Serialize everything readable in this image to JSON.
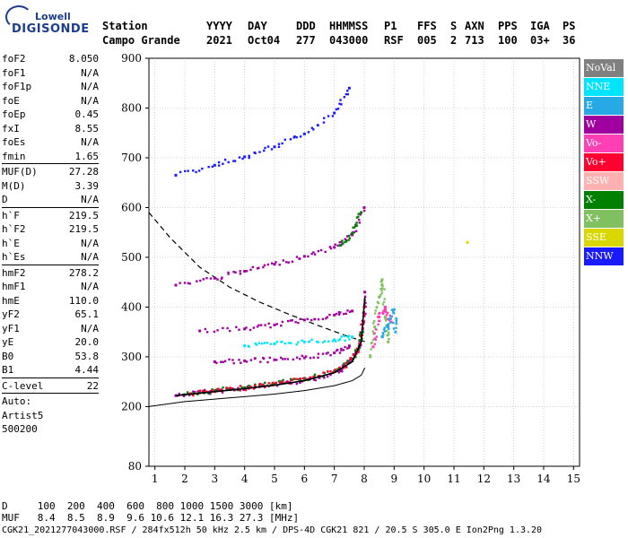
{
  "logo": {
    "top": "Lowell",
    "bottom": "DIGISONDE"
  },
  "header": {
    "labels": [
      "Station",
      "YYYY",
      "DAY",
      "DDD",
      "HHMMSS",
      "P1",
      "FFS",
      "S",
      "AXN",
      "PPS",
      "IGA",
      "PS"
    ],
    "values": [
      "Campo Grande",
      "2021",
      "Oct04",
      "277",
      "043000",
      "RSF",
      "005",
      "2",
      "713",
      "100",
      "03+",
      "36"
    ]
  },
  "params": [
    {
      "name": "foF2",
      "value": "8.050"
    },
    {
      "name": "foF1",
      "value": "N/A"
    },
    {
      "name": "foF1p",
      "value": "N/A"
    },
    {
      "name": "foE",
      "value": "N/A"
    },
    {
      "name": "foEp",
      "value": "0.45"
    },
    {
      "name": "fxI",
      "value": "8.55"
    },
    {
      "name": "foEs",
      "value": "N/A"
    },
    {
      "name": "fmin",
      "value": "1.65"
    },
    {
      "sep": true
    },
    {
      "name": "MUF(D)",
      "value": "27.28"
    },
    {
      "name": "M(D)",
      "value": "3.39"
    },
    {
      "name": "D",
      "value": "N/A"
    },
    {
      "sep": true
    },
    {
      "name": "h`F",
      "value": "219.5"
    },
    {
      "name": "h`F2",
      "value": "219.5"
    },
    {
      "name": "h`E",
      "value": "N/A"
    },
    {
      "name": "h`Es",
      "value": "N/A"
    },
    {
      "sep": true
    },
    {
      "name": "hmF2",
      "value": "278.2"
    },
    {
      "name": "hmF1",
      "value": "N/A"
    },
    {
      "name": "hmE",
      "value": "110.0"
    },
    {
      "name": "yF2",
      "value": "65.1"
    },
    {
      "name": "yF1",
      "value": "N/A"
    },
    {
      "name": "yE",
      "value": "20.0"
    },
    {
      "name": "B0",
      "value": "53.8"
    },
    {
      "name": "B1",
      "value": "4.44"
    },
    {
      "sep": true
    },
    {
      "name": "C-level",
      "value": "22"
    },
    {
      "sep": true
    },
    {
      "text": "Auto:"
    },
    {
      "text": "Artist5"
    },
    {
      "text": "500200"
    }
  ],
  "legend": [
    {
      "label": "NoVal",
      "color": "#808080"
    },
    {
      "label": "NNE",
      "color": "#00e5ff"
    },
    {
      "label": "E",
      "color": "#27a9e6"
    },
    {
      "label": "W",
      "color": "#a000a0"
    },
    {
      "label": "Vo-",
      "color": "#ff3fb4"
    },
    {
      "label": "Vo+",
      "color": "#ff0030"
    },
    {
      "label": "SSW",
      "color": "#ffb0b0"
    },
    {
      "label": "X-",
      "color": "#008000"
    },
    {
      "label": "X+",
      "color": "#80c060"
    },
    {
      "label": "SSE",
      "color": "#d8d800"
    },
    {
      "label": "NNW",
      "color": "#1a1aff"
    }
  ],
  "bottom": {
    "d_row": "D     100  200  400  600  800 1000 1500 3000 [km]",
    "muf_row": "MUF   8.4  8.5  8.9  9.6 10.6 12.1 16.3 27.3 [MHz]",
    "footer": "CGK21_2021277043000.RSF / 284fx512h 50 kHz 2.5 km / DPS-4D CGK21 821 / 20.5 S 305.0 E Ion2Png 1.3.20"
  },
  "chart_data": {
    "type": "scatter",
    "xlim": [
      0.8,
      15.2
    ],
    "ylim": [
      80,
      900
    ],
    "x_ticks": [
      1,
      2,
      3,
      4,
      5,
      6,
      7,
      8,
      9,
      10,
      11,
      12,
      13,
      14,
      15
    ],
    "y_ticks": [
      80,
      200,
      300,
      400,
      500,
      600,
      700,
      800,
      900
    ],
    "grid": true,
    "legend_position": "right",
    "profile_curve": [
      [
        0.8,
        200
      ],
      [
        2,
        210
      ],
      [
        3,
        215
      ],
      [
        4,
        220
      ],
      [
        5,
        225
      ],
      [
        6,
        232
      ],
      [
        7,
        242
      ],
      [
        7.6,
        252
      ],
      [
        7.9,
        263
      ],
      [
        8.02,
        278
      ]
    ],
    "muf_dashed_curve": [
      [
        0.8,
        590
      ],
      [
        1.5,
        540
      ],
      [
        2.5,
        480
      ],
      [
        3.5,
        440
      ],
      [
        4.5,
        410
      ],
      [
        5.5,
        385
      ],
      [
        6.5,
        362
      ],
      [
        7.5,
        340
      ],
      [
        8.05,
        330
      ]
    ],
    "fitted_trace": [
      [
        1.7,
        222
      ],
      [
        3,
        230
      ],
      [
        4,
        236
      ],
      [
        5,
        243
      ],
      [
        6,
        252
      ],
      [
        7,
        268
      ],
      [
        7.6,
        290
      ],
      [
        7.9,
        330
      ],
      [
        8.02,
        420
      ]
    ],
    "echo_clusters": [
      {
        "color": "#a000a0",
        "points": [
          [
            1.7,
            222
          ],
          [
            2.5,
            228
          ],
          [
            3.5,
            234
          ],
          [
            4.5,
            240
          ],
          [
            5.5,
            248
          ],
          [
            6.5,
            258
          ],
          [
            7.2,
            272
          ],
          [
            7.6,
            292
          ],
          [
            7.85,
            320
          ],
          [
            7.98,
            370
          ],
          [
            8.02,
            430
          ]
        ]
      },
      {
        "color": "#008000",
        "points": [
          [
            2,
            224
          ],
          [
            3,
            232
          ],
          [
            4,
            238
          ],
          [
            5,
            246
          ],
          [
            6,
            256
          ],
          [
            7,
            270
          ],
          [
            7.7,
            300
          ],
          [
            7.95,
            350
          ]
        ]
      },
      {
        "color": "#ff0030",
        "points": [
          [
            2.2,
            226
          ],
          [
            3.2,
            232
          ],
          [
            4.2,
            239
          ],
          [
            5.2,
            247
          ],
          [
            6.2,
            258
          ],
          [
            7.3,
            278
          ],
          [
            7.8,
            310
          ],
          [
            8.0,
            400
          ]
        ]
      },
      {
        "color": "#a000a0",
        "points": [
          [
            3,
            290
          ],
          [
            4,
            292
          ],
          [
            5,
            294
          ],
          [
            6,
            298
          ],
          [
            7,
            308
          ],
          [
            7.5,
            322
          ]
        ]
      },
      {
        "color": "#00e5ff",
        "points": [
          [
            4,
            322
          ],
          [
            5,
            326
          ],
          [
            6,
            330
          ],
          [
            7,
            334
          ],
          [
            7.6,
            340
          ]
        ]
      },
      {
        "color": "#a000a0",
        "points": [
          [
            2.5,
            352
          ],
          [
            4,
            356
          ],
          [
            5,
            364
          ],
          [
            6,
            374
          ],
          [
            7,
            384
          ],
          [
            7.6,
            392
          ]
        ]
      },
      {
        "color": "#a000a0",
        "points": [
          [
            1.7,
            444
          ],
          [
            3,
            458
          ],
          [
            4,
            472
          ],
          [
            5,
            486
          ],
          [
            6,
            502
          ],
          [
            7,
            520
          ],
          [
            7.6,
            545
          ],
          [
            8,
            600
          ]
        ]
      },
      {
        "color": "#008000",
        "points": [
          [
            7.2,
            524
          ],
          [
            7.6,
            548
          ],
          [
            7.9,
            590
          ]
        ]
      },
      {
        "color": "#1a1aff",
        "points": [
          [
            1.7,
            665
          ],
          [
            3,
            685
          ],
          [
            4,
            702
          ],
          [
            5,
            722
          ],
          [
            6,
            748
          ],
          [
            7,
            790
          ],
          [
            7.5,
            840
          ]
        ]
      },
      {
        "color": "#80c060",
        "points": [
          [
            8.2,
            300
          ],
          [
            8.35,
            360
          ],
          [
            8.5,
            420
          ],
          [
            8.6,
            455
          ],
          [
            8.7,
            380
          ],
          [
            8.8,
            330
          ]
        ]
      },
      {
        "color": "#ff3fb4",
        "points": [
          [
            8.3,
            320
          ],
          [
            8.5,
            380
          ],
          [
            8.7,
            400
          ],
          [
            8.9,
            370
          ]
        ]
      },
      {
        "color": "#27a9e6",
        "points": [
          [
            8.6,
            340
          ],
          [
            8.8,
            360
          ],
          [
            9.0,
            395
          ],
          [
            9.05,
            350
          ]
        ]
      },
      {
        "color": "#d8d800",
        "points": [
          [
            11.45,
            530
          ]
        ]
      }
    ]
  }
}
